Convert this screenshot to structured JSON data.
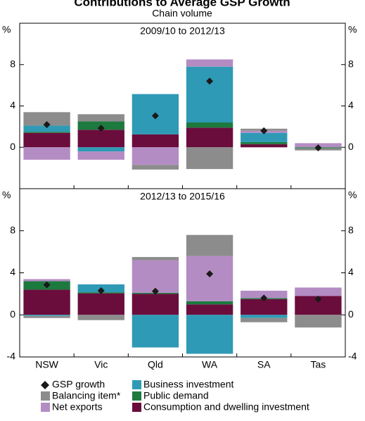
{
  "chart_data": {
    "type": "bar",
    "title": "Contributions to Average GSP Growth",
    "subtitle": "Chain volume",
    "unit": "%",
    "categories": [
      "NSW",
      "Vic",
      "Qld",
      "WA",
      "SA",
      "Tas"
    ],
    "series": [
      {
        "name": "GSP growth",
        "color": "#1a1a1a",
        "marker": "diamond"
      },
      {
        "name": "Balancing item*",
        "color": "#8c8c8c"
      },
      {
        "name": "Net exports",
        "color": "#b48cc4"
      },
      {
        "name": "Business investment",
        "color": "#2f9ab6"
      },
      {
        "name": "Public demand",
        "color": "#1c7a3e"
      },
      {
        "name": "Consumption and dwelling investment",
        "color": "#6a0d3d"
      }
    ],
    "panels": [
      {
        "title": "2009/10 to 2012/13",
        "ylim": [
          -4,
          12
        ],
        "yticks": [
          0,
          4,
          8
        ],
        "values": [
          [
            2.2,
            1.85,
            3.05,
            6.4,
            1.6,
            -0.05
          ],
          [
            1.3,
            0.7,
            -0.45,
            -2.1,
            0.2,
            -0.2
          ],
          [
            -1.2,
            -0.8,
            -1.7,
            0.7,
            0.2,
            0.4
          ],
          [
            0.6,
            -0.4,
            3.9,
            5.4,
            0.9,
            0
          ],
          [
            0.1,
            0.8,
            0,
            0.5,
            0.2,
            -0.1
          ],
          [
            1.4,
            1.7,
            1.25,
            1.9,
            0.3,
            0
          ]
        ]
      },
      {
        "title": "2012/13 to 2015/16",
        "ylim": [
          -4,
          12
        ],
        "yticks": [
          -4,
          0,
          4,
          8
        ],
        "values": [
          [
            2.85,
            2.3,
            2.25,
            3.9,
            1.6,
            1.5
          ],
          [
            -0.2,
            -0.5,
            0.3,
            2.0,
            -0.4,
            -1.2
          ],
          [
            0.2,
            0,
            3.1,
            4.3,
            0.7,
            0.8
          ],
          [
            -0.1,
            0.75,
            -3.1,
            -3.7,
            -0.3,
            0
          ],
          [
            0.8,
            0.1,
            0.1,
            0.3,
            0.1,
            0
          ],
          [
            2.4,
            2.05,
            2.0,
            1.0,
            1.5,
            1.8
          ]
        ]
      }
    ]
  }
}
